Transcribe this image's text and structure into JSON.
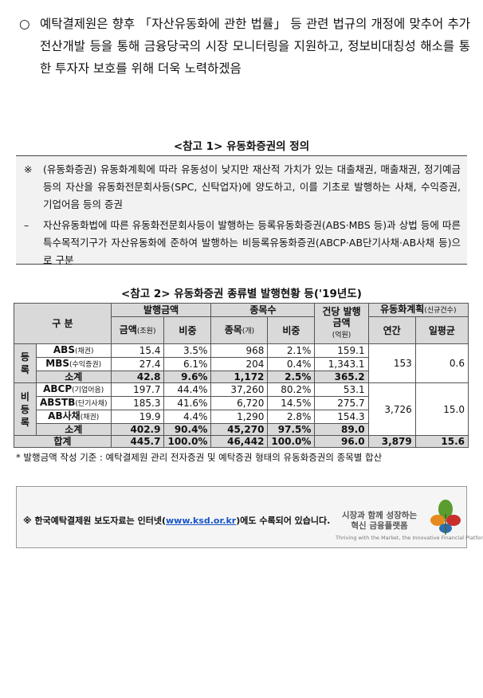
{
  "intro": {
    "bullet": "○",
    "text": "예탁결제원은 향후 「자산유동화에 관한 법률」 등 관련 법규의 개정에 맞추어 추가 전산개발 등을 통해 금융당국의 시장 모니터링을 지원하고, 정보비대칭성 해소를 통한 투자자 보호를 위해 더욱 노력하겠음"
  },
  "ref1": {
    "title": "<참고 1> 유동화증권의 정의",
    "mark": "※",
    "def": "(유동화증권) 유동화계획에 따라 유동성이 낮지만 재산적 가치가 있는 대출채권, 매출채권, 정기예금 등의 자산을 유동화전문회사등(SPC, 신탁업자)에 양도하고, 이를 기초로 발행하는 사채, 수익증권, 기업어음 등의 증권",
    "dash": "–",
    "note": "자산유동화법에 따른 유동화전문회사등이 발행하는 등록유동화증권(ABS·MBS 등)과 상법 등에 따른 특수목적기구가 자산유동화에 준하여 발행하는 비등록유동화증권(ABCP·AB단기사채·AB사채 등)으로 구분"
  },
  "ref2": {
    "title": "<참고 2> 유동화증권 종류별 발행현황 등('19년도)",
    "headers": {
      "category": "구 분",
      "issue_amount": "발행금액",
      "amount": "금액",
      "amount_unit": "(조원)",
      "share": "비중",
      "issue_count": "종목수",
      "count": "종목",
      "count_unit": "(개)",
      "count_share": "비중",
      "avg_amount": "건당 발행금액",
      "avg_unit": "(억원)",
      "plan": "유동화계획",
      "plan_unit": "(신규건수)",
      "annual": "연간",
      "daily": "일평균"
    },
    "registered_label": "등록",
    "unregistered_label": "비등록",
    "registered_rows": [
      {
        "name": "ABS",
        "sub": "(채권)",
        "amount": "15.4",
        "share": "3.5%",
        "count": "968",
        "count_share": "2.1%",
        "avg": "159.1"
      },
      {
        "name": "MBS",
        "sub": "(수익증권)",
        "amount": "27.4",
        "share": "6.1%",
        "count": "204",
        "count_share": "0.4%",
        "avg": "1,343.1"
      }
    ],
    "registered_subtotal": {
      "name": "소계",
      "amount": "42.8",
      "share": "9.6%",
      "count": "1,172",
      "count_share": "2.5%",
      "avg": "365.2"
    },
    "registered_plan": {
      "annual": "153",
      "daily": "0.6"
    },
    "unregistered_rows": [
      {
        "name": "ABCP",
        "sub": "(기업어음)",
        "amount": "197.7",
        "share": "44.4%",
        "count": "37,260",
        "count_share": "80.2%",
        "avg": "53.1"
      },
      {
        "name": "ABSTB",
        "sub": "(단기사채)",
        "amount": "185.3",
        "share": "41.6%",
        "count": "6,720",
        "count_share": "14.5%",
        "avg": "275.7"
      },
      {
        "name": "AB사채",
        "sub": "(채권)",
        "amount": "19.9",
        "share": "4.4%",
        "count": "1,290",
        "count_share": "2.8%",
        "avg": "154.3"
      }
    ],
    "unregistered_subtotal": {
      "name": "소계",
      "amount": "402.9",
      "share": "90.4%",
      "count": "45,270",
      "count_share": "97.5%",
      "avg": "89.0"
    },
    "unregistered_plan": {
      "annual": "3,726",
      "daily": "15.0"
    },
    "total": {
      "name": "합계",
      "amount": "445.7",
      "share": "100.0%",
      "count": "46,442",
      "count_share": "100.0%",
      "avg": "96.0",
      "annual": "3,879",
      "daily": "15.6"
    },
    "footnote": "* 발행금액 작성 기준 : 예탁결제원 관리 전자증권 및 예탁증권 형태의 유동화증권의 종목별 합산"
  },
  "banner": {
    "text_before": "※ 한국예탁결제원 보도자료는 인터넷(",
    "url": "www.ksd.or.kr",
    "text_after": ")에도 수록되어 있습니다.",
    "slogan_line1": "시장과 함께 성장하는",
    "slogan_line2": "혁신 금융플랫폼",
    "slogan_en": "Thriving with the Market, the Innovative Financial Platform",
    "colors": {
      "leaf_green": "#5a9c2e",
      "leaf_orange": "#e58a1f",
      "leaf_red": "#c9302c",
      "leaf_blue": "#2f6db3"
    }
  }
}
